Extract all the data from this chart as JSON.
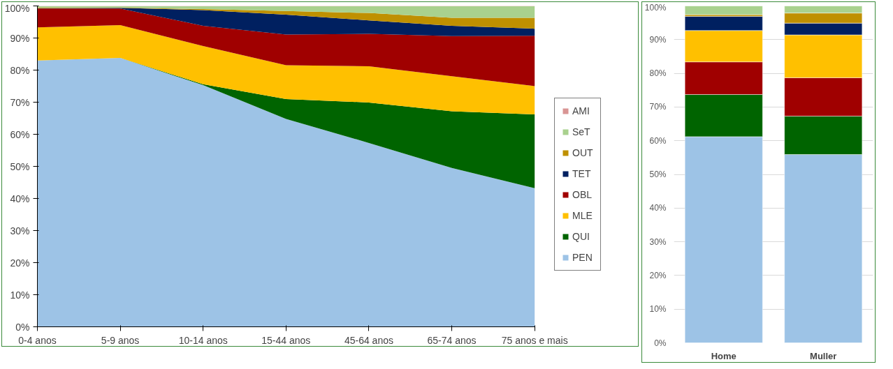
{
  "chart_data": [
    {
      "type": "area",
      "stacked": true,
      "categories": [
        "0-4 anos",
        "5-9 anos",
        "10-14 anos",
        "15-44 anos",
        "45-64 anos",
        "65-74 anos",
        "75 anos e mais"
      ],
      "ylim": [
        0,
        100
      ],
      "yticks": [
        {
          "value": 0,
          "label": "0%"
        },
        {
          "value": 10,
          "label": "10%"
        },
        {
          "value": 20,
          "label": "20%"
        },
        {
          "value": 30,
          "label": "30%"
        },
        {
          "value": 40,
          "label": "40%"
        },
        {
          "value": 50,
          "label": "50%"
        },
        {
          "value": 60,
          "label": "60%"
        },
        {
          "value": 70,
          "label": "70%"
        },
        {
          "value": 80,
          "label": "80%"
        },
        {
          "value": 90,
          "label": "90%"
        },
        {
          "value": 100,
          "label": "100%"
        }
      ],
      "grid": false,
      "legend": "right",
      "series": [
        {
          "name": "PEN",
          "color": "#9dc3e6",
          "values": [
            83.0,
            83.8,
            75.3,
            64.8,
            57.3,
            49.5,
            43.2
          ]
        },
        {
          "name": "QUI",
          "color": "#006400",
          "values": [
            0,
            0,
            0.3,
            6.2,
            12.6,
            17.7,
            23.0
          ]
        },
        {
          "name": "MLE",
          "color": "#ffc000",
          "values": [
            10.3,
            10.2,
            11.9,
            10.5,
            11.3,
            10.9,
            8.8
          ]
        },
        {
          "name": "OBL",
          "color": "#a00000",
          "values": [
            5.9,
            5.2,
            6.3,
            9.6,
            10.1,
            12.5,
            15.7
          ]
        },
        {
          "name": "TET",
          "color": "#002060",
          "values": [
            0.1,
            0.2,
            4.9,
            6.2,
            4.2,
            3.2,
            2.2
          ]
        },
        {
          "name": "OUT",
          "color": "#bf9000",
          "values": [
            0.2,
            0.1,
            0.3,
            1.1,
            2.3,
            2.5,
            3.4
          ]
        },
        {
          "name": "SeT",
          "color": "#a9d18e",
          "values": [
            0.4,
            0.4,
            0.9,
            1.5,
            2.1,
            3.6,
            3.6
          ]
        },
        {
          "name": "AMI",
          "color": "#d99594",
          "values": [
            0.1,
            0.1,
            0.1,
            0.1,
            0.1,
            0.1,
            0.1
          ]
        }
      ]
    },
    {
      "type": "bar",
      "stacked": true,
      "categories": [
        "Home",
        "Muller"
      ],
      "ylim": [
        0,
        100
      ],
      "yticks": [
        {
          "value": 0,
          "label": "0%"
        },
        {
          "value": 10,
          "label": "10%"
        },
        {
          "value": 20,
          "label": "20%"
        },
        {
          "value": 30,
          "label": "30%"
        },
        {
          "value": 40,
          "label": "40%"
        },
        {
          "value": 50,
          "label": "50%"
        },
        {
          "value": 60,
          "label": "60%"
        },
        {
          "value": 70,
          "label": "70%"
        },
        {
          "value": 80,
          "label": "80%"
        },
        {
          "value": 90,
          "label": "90%"
        },
        {
          "value": 100,
          "label": "100%"
        }
      ],
      "grid": "y",
      "series": [
        {
          "color": "#9dc3e6",
          "values": [
            61.2,
            55.9
          ]
        },
        {
          "color": "#006400",
          "values": [
            12.5,
            11.4
          ]
        },
        {
          "color": "#a00000",
          "values": [
            9.7,
            11.4
          ]
        },
        {
          "color": "#ffc000",
          "values": [
            9.3,
            12.7
          ]
        },
        {
          "color": "#002060",
          "values": [
            4.2,
            3.5
          ]
        },
        {
          "color": "#bf9000",
          "values": [
            0.5,
            3.0
          ]
        },
        {
          "color": "#a9d18e",
          "values": [
            2.6,
            2.1
          ]
        }
      ]
    }
  ]
}
